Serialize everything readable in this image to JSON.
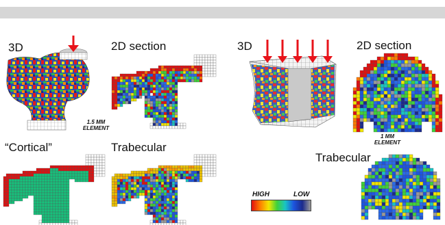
{
  "labels": {
    "left_3d": "3D",
    "left_2d": "2D section",
    "cortical": "“Cortical”",
    "left_trab": "Trabecular",
    "right_3d": "3D",
    "right_2d": "2D section",
    "right_trab": "Trabecular"
  },
  "element_notes": {
    "left_line1": "1.5 MM",
    "left_line2": "ELEMENT",
    "right_line1": "1 MM",
    "right_line2": "ELEMENT"
  },
  "legend": {
    "high": "HIGH",
    "low": "LOW",
    "colors": [
      "#e01010",
      "#ff7a00",
      "#f2e600",
      "#3fd13a",
      "#19c4c4",
      "#1d55e0",
      "#1b2a8c",
      "#9a9a9a"
    ]
  },
  "arrow_color": "#e8131a"
}
